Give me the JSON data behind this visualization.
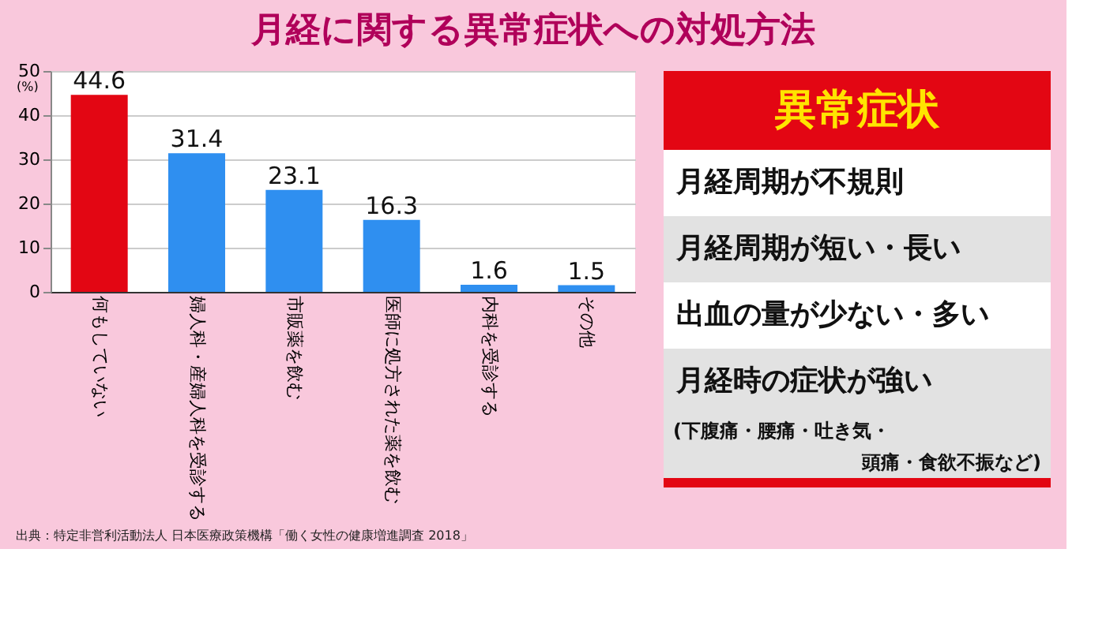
{
  "chart_data": [
    {
      "type": "bar",
      "title": "月経に関する異常症状への対処方法",
      "ylabel": "(%)",
      "categories": [
        "何もしていない",
        "婦人科・産婦人科を受診する",
        "市販薬を飲む",
        "医師に処方された薬を飲む",
        "内科を受診する",
        "その他"
      ],
      "values": [
        44.6,
        31.4,
        23.1,
        16.3,
        1.6,
        1.5
      ],
      "colors": [
        "#e30613",
        "#2f8ff0",
        "#2f8ff0",
        "#2f8ff0",
        "#2f8ff0",
        "#2f8ff0"
      ],
      "ylim": [
        0,
        50
      ],
      "yticks": [
        0,
        10,
        20,
        30,
        40,
        50
      ],
      "grid": "y",
      "data_labels": true,
      "annotations": [
        "出典：特定非営利活動法人 日本医療政策機構「働く女性の健康増進調査 2018」"
      ]
    },
    {
      "type": "other",
      "title": "異常症状",
      "annotations": [
        "月経周期が不規則",
        "月経周期が短い・長い",
        "出血の量が少ない・多い",
        "月経時の症状が強い",
        "(下腹痛・腰痛・吐き気・",
        "頭痛・食欲不振など)"
      ]
    }
  ]
}
